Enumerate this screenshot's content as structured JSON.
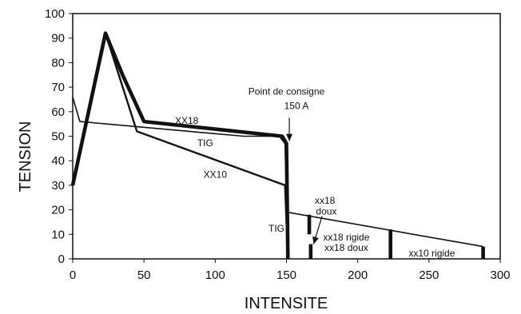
{
  "chart_data": {
    "type": "line",
    "xlabel": "INTENSITE",
    "ylabel": "TENSION",
    "xlim": [
      0,
      300
    ],
    "ylim": [
      0,
      100
    ],
    "x_ticks": [
      "0",
      "50",
      "100",
      "150",
      "200",
      "250",
      "300"
    ],
    "y_ticks": [
      "0",
      "10",
      "20",
      "30",
      "40",
      "50",
      "60",
      "70",
      "80",
      "90",
      "100"
    ],
    "grid": false,
    "series": [
      {
        "name": "XX18",
        "style": "bold",
        "x": [
          0,
          23,
          35,
          50,
          147,
          150,
          151
        ],
        "y": [
          30,
          92,
          75,
          56,
          50,
          47,
          0
        ]
      },
      {
        "name": "TIG",
        "style": "thin",
        "x": [
          0,
          5,
          120,
          145,
          149,
          151
        ],
        "y": [
          66,
          56,
          50,
          50,
          47,
          0
        ]
      },
      {
        "name": "XX10",
        "style": "medium",
        "x": [
          0,
          23,
          45,
          149,
          151
        ],
        "y": [
          30,
          92,
          52,
          30,
          0
        ]
      },
      {
        "name": "",
        "style": "thin",
        "x": [
          151,
          288
        ],
        "y": [
          19,
          5
        ]
      }
    ],
    "vertical_segments": [
      {
        "x": 166,
        "y": [
          10,
          18
        ],
        "style": "bold"
      },
      {
        "x": 167,
        "y": [
          0,
          6
        ],
        "style": "bold"
      },
      {
        "x": 223,
        "y": [
          0,
          12
        ],
        "style": "bold"
      },
      {
        "x": 288,
        "y": [
          0,
          5
        ],
        "style": "bold"
      }
    ],
    "annotations": [
      {
        "text": "XX18",
        "x": 80,
        "y": 55
      },
      {
        "text": "TIG",
        "x": 93,
        "y": 46
      },
      {
        "text": "XX10",
        "x": 100,
        "y": 33
      },
      {
        "text": "TIG",
        "x": 143,
        "y": 11
      },
      {
        "text": "xx18",
        "x": 177,
        "y": 22.5
      },
      {
        "text": "doux",
        "x": 178,
        "y": 18
      },
      {
        "text": "xx18 rigide",
        "x": 192,
        "y": 7.5
      },
      {
        "text": "xx18 doux",
        "x": 192,
        "y": 3.2
      },
      {
        "text": "xx10 rigide",
        "x": 252,
        "y": 1
      },
      {
        "text": "Point de consigne",
        "x": 150,
        "y": 67
      },
      {
        "text": "150 A",
        "x": 157,
        "y": 61
      }
    ]
  }
}
